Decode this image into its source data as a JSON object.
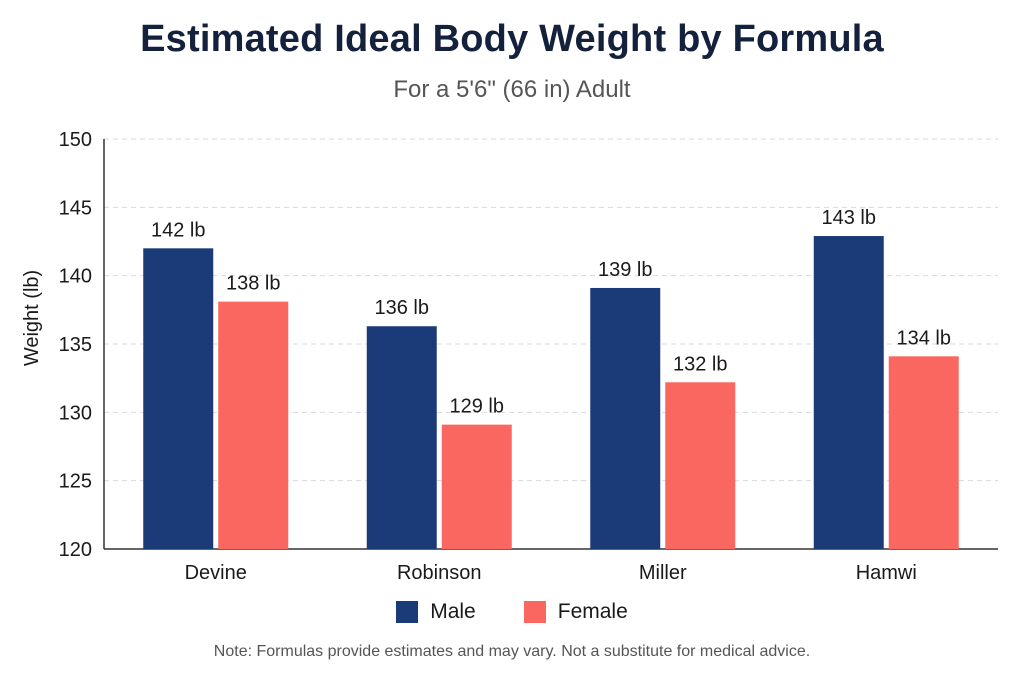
{
  "chart_data": {
    "type": "bar",
    "title": "Estimated Ideal Body Weight by Formula",
    "subtitle": "For a 5'6\" (66 in) Adult",
    "xlabel": "",
    "ylabel": "Weight (lb)",
    "ylim": [
      120,
      150
    ],
    "yticks": [
      120,
      125,
      130,
      135,
      140,
      145,
      150
    ],
    "grid": true,
    "legend_position": "bottom",
    "categories": [
      "Devine",
      "Robinson",
      "Miller",
      "Hamwi"
    ],
    "series": [
      {
        "name": "Male",
        "color": "#1b3a78",
        "values": [
          142,
          136.3,
          139.1,
          142.9
        ],
        "labels": [
          "142 lb",
          "136 lb",
          "139 lb",
          "143 lb"
        ]
      },
      {
        "name": "Female",
        "color": "#fa6760",
        "values": [
          138.1,
          129.1,
          132.2,
          134.1
        ],
        "labels": [
          "138 lb",
          "129 lb",
          "132 lb",
          "134 lb"
        ]
      }
    ],
    "note": "Note: Formulas provide estimates and may vary. Not a substitute for medical advice."
  }
}
